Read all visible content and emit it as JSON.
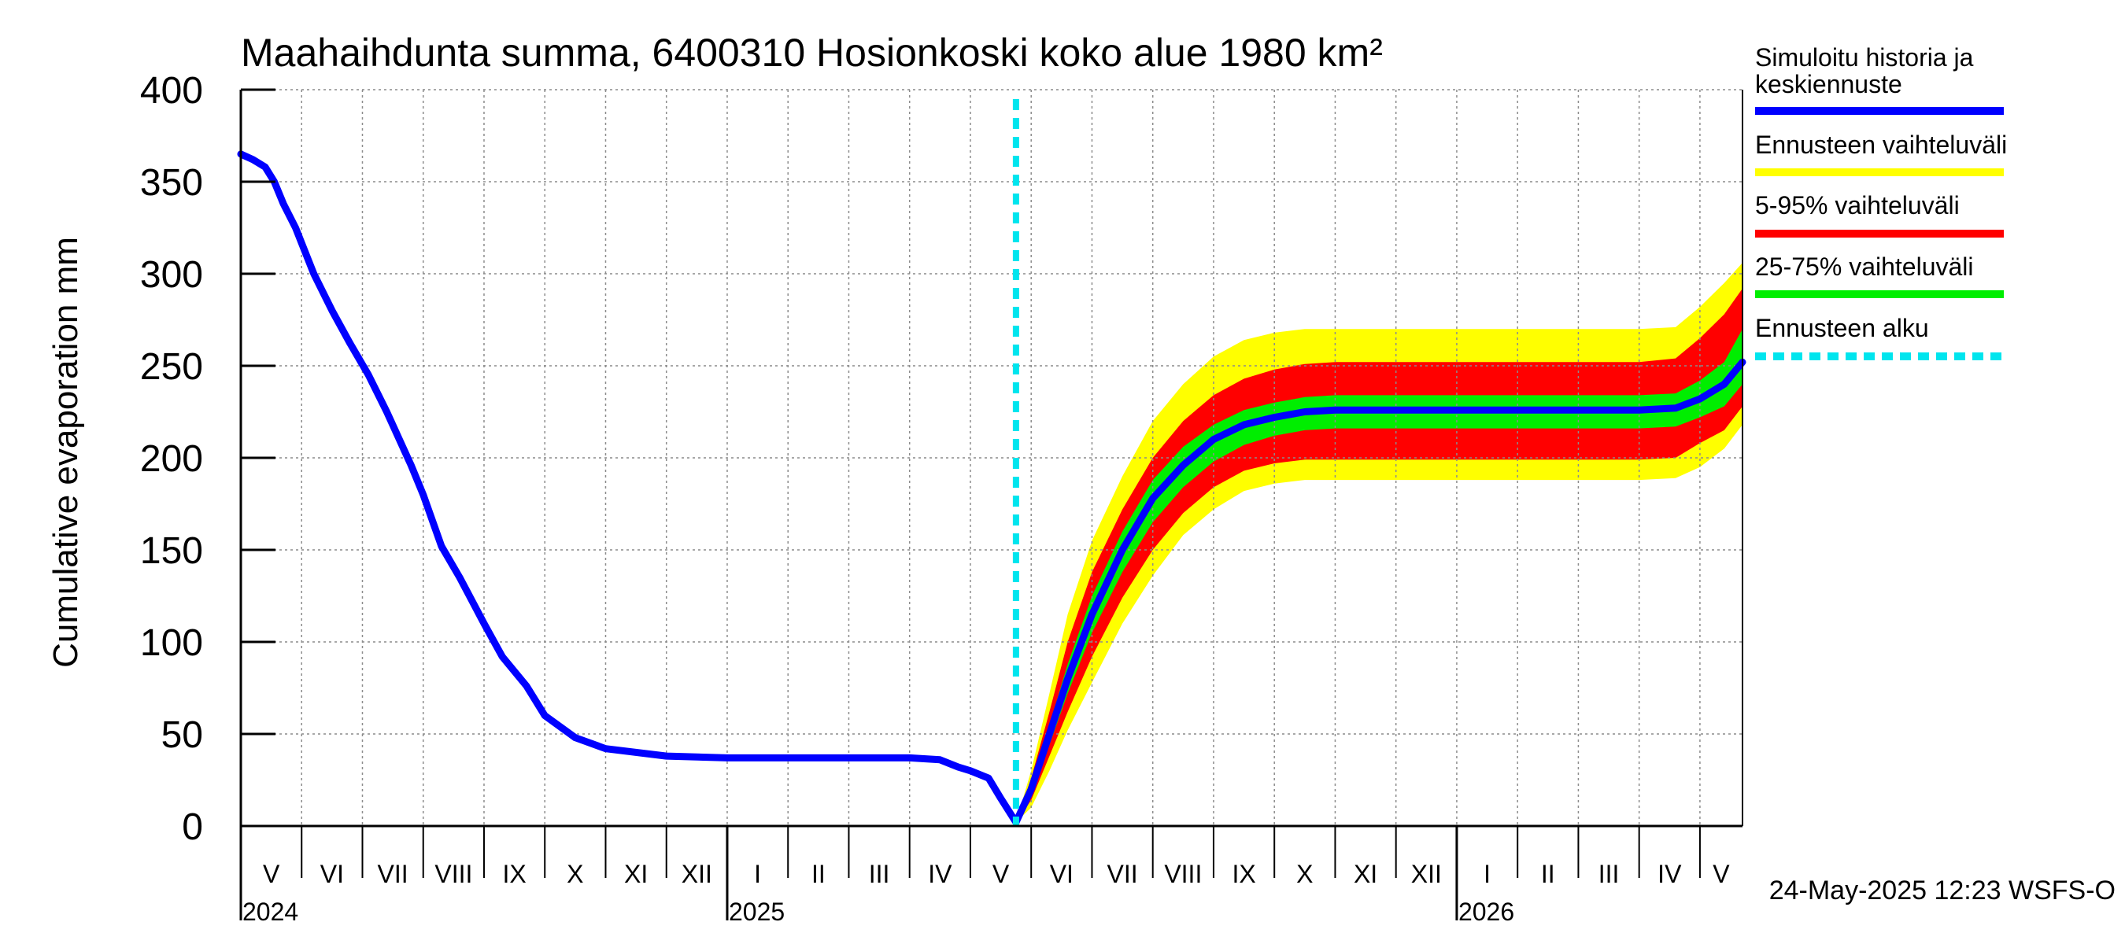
{
  "chart_data": {
    "type": "area",
    "title": "Maahaihdunta summa, 6400310 Hosionkoski koko alue 1980 km²",
    "ylabel": "Cumulative evaporation   mm",
    "xlabel": "",
    "ylim": [
      0,
      400
    ],
    "yticks": [
      0,
      50,
      100,
      150,
      200,
      250,
      300,
      350,
      400
    ],
    "grid": true,
    "x_unit": "months since 2024-05-01",
    "xlim": [
      0,
      24.7
    ],
    "month_labels": [
      "V",
      "VI",
      "VII",
      "VIII",
      "IX",
      "X",
      "XI",
      "XII",
      "I",
      "II",
      "III",
      "IV",
      "V",
      "VI",
      "VII",
      "VIII",
      "IX",
      "X",
      "XI",
      "XII",
      "I",
      "II",
      "III",
      "IV",
      "V"
    ],
    "year_labels": [
      {
        "label": "2024",
        "month": 0
      },
      {
        "label": "2025",
        "month": 8
      },
      {
        "label": "2026",
        "month": 20
      }
    ],
    "forecast_start": 12.75,
    "history": {
      "name": "Simuloitu historia ja keskiennuste",
      "x": [
        0,
        0.2,
        0.4,
        0.55,
        0.7,
        0.9,
        1.2,
        1.5,
        1.8,
        2.1,
        2.4,
        2.8,
        3.0,
        3.3,
        3.6,
        4.0,
        4.3,
        4.7,
        5.0,
        5.5,
        6.0,
        7.0,
        8.0,
        9.0,
        10.0,
        11.0,
        11.5,
        11.8,
        12.0,
        12.3,
        12.5,
        12.75
      ],
      "y": [
        365,
        362,
        358,
        350,
        338,
        325,
        300,
        280,
        262,
        245,
        225,
        196,
        180,
        152,
        135,
        110,
        92,
        76,
        60,
        48,
        42,
        38,
        37,
        37,
        37,
        37,
        36,
        32,
        30,
        26,
        15,
        2
      ]
    },
    "forecast": {
      "x": [
        12.75,
        13.0,
        13.3,
        13.6,
        14.0,
        14.5,
        15.0,
        15.5,
        16.0,
        16.5,
        17.0,
        17.5,
        18.0,
        19.0,
        20.0,
        21.0,
        22.0,
        23.0,
        23.6,
        24.0,
        24.4,
        24.7
      ],
      "median": [
        2,
        20,
        50,
        80,
        115,
        150,
        178,
        196,
        210,
        218,
        222,
        225,
        226,
        226,
        226,
        226,
        226,
        226,
        227,
        232,
        240,
        252
      ],
      "p25": [
        2,
        17,
        44,
        72,
        105,
        138,
        165,
        184,
        198,
        207,
        212,
        215,
        216,
        216,
        216,
        216,
        216,
        216,
        217,
        222,
        228,
        240
      ],
      "p75": [
        2,
        22,
        55,
        88,
        125,
        160,
        188,
        206,
        218,
        226,
        230,
        233,
        234,
        234,
        234,
        234,
        234,
        234,
        235,
        242,
        252,
        270
      ],
      "p5": [
        2,
        14,
        38,
        62,
        92,
        124,
        150,
        170,
        184,
        193,
        197,
        199,
        199,
        199,
        199,
        199,
        199,
        199,
        200,
        208,
        215,
        228
      ],
      "p95": [
        2,
        26,
        62,
        100,
        138,
        172,
        200,
        220,
        234,
        243,
        248,
        251,
        252,
        252,
        252,
        252,
        252,
        252,
        254,
        265,
        278,
        292
      ],
      "min": [
        2,
        10,
        30,
        52,
        78,
        110,
        136,
        158,
        172,
        182,
        186,
        188,
        188,
        188,
        188,
        188,
        188,
        188,
        189,
        195,
        205,
        218
      ],
      "max": [
        2,
        30,
        72,
        115,
        155,
        190,
        220,
        240,
        255,
        264,
        268,
        270,
        270,
        270,
        270,
        270,
        270,
        270,
        271,
        282,
        295,
        306
      ]
    },
    "legend": [
      {
        "label": "Simuloitu historia ja",
        "label2": "keskiennuste",
        "color": "#0000ff",
        "style": "solid"
      },
      {
        "label": "Ennusteen vaihteluväli",
        "color": "#ffff00",
        "style": "solid"
      },
      {
        "label": "5-95% vaihteluväli",
        "color": "#ff0000",
        "style": "solid"
      },
      {
        "label": "25-75% vaihteluväli",
        "color": "#00ee00",
        "style": "solid"
      },
      {
        "label": "Ennusteen alku",
        "color": "#00e5ee",
        "style": "dashed"
      }
    ],
    "legend_position": "right",
    "colors": {
      "history": "#0000ff",
      "range_full": "#ffff00",
      "range_5_95": "#ff0000",
      "range_25_75": "#00ee00",
      "forecast_start": "#00e5ee",
      "grid": "#8c8c8c"
    }
  },
  "footer": {
    "timestamp": "24-May-2025 12:23 WSFS-O"
  }
}
